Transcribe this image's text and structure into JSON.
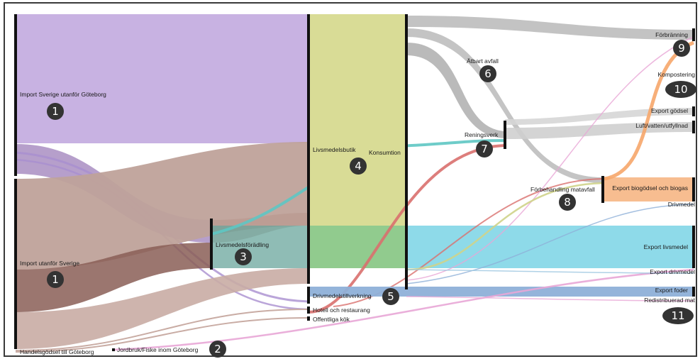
{
  "nodes": [
    {
      "id": "import_sverige",
      "label": "Import Sverige utanför Göteborg",
      "marker": "1"
    },
    {
      "id": "import_utanfor",
      "label": "Import utanför Sverige",
      "marker": "1"
    },
    {
      "id": "handelsgodsel",
      "label": "Handelsgödsel till Göteborg",
      "marker": ""
    },
    {
      "id": "jordbruk",
      "label": "Jordbruk/Fiske inom Göteborg",
      "marker": "2"
    },
    {
      "id": "livsmedelsforadling",
      "label": "Livsmedelsförädling",
      "marker": "3"
    },
    {
      "id": "livsmedelsbutik",
      "label": "Livsmedelsbutik",
      "marker": "4"
    },
    {
      "id": "drivmedelstillverkning",
      "label": "Drivmedelstillverkning",
      "marker": "5"
    },
    {
      "id": "hotell",
      "label": "Hotell och restaurang",
      "marker": ""
    },
    {
      "id": "offentliga",
      "label": "Offentliga kök",
      "marker": ""
    },
    {
      "id": "konsumtion",
      "label": "Konsumtion",
      "marker": ""
    },
    {
      "id": "atbart",
      "label": "Ätbart avfall",
      "marker": "6"
    },
    {
      "id": "reningsverk",
      "label": "Reningsverk",
      "marker": "7"
    },
    {
      "id": "forbehandling",
      "label": "Förbehandling matavfall",
      "marker": "8"
    },
    {
      "id": "forbranning",
      "label": "Förbränning",
      "marker": "9"
    },
    {
      "id": "kompostering",
      "label": "Kompostering",
      "marker": "10"
    },
    {
      "id": "export_godsel",
      "label": "Export gödsel",
      "marker": ""
    },
    {
      "id": "luft",
      "label": "Luft/vatten/utfyllnad",
      "marker": ""
    },
    {
      "id": "export_biogodsel",
      "label": "Export biogödsel och biogas",
      "marker": ""
    },
    {
      "id": "drivmedel",
      "label": "Drivmedel",
      "marker": ""
    },
    {
      "id": "export_livsmedel",
      "label": "Export livsmedel",
      "marker": ""
    },
    {
      "id": "export_drivmedel",
      "label": "Export drivmedel",
      "marker": ""
    },
    {
      "id": "export_foder",
      "label": "Export foder",
      "marker": ""
    },
    {
      "id": "redistribuerad",
      "label": "Redistribuerad mat",
      "marker": "11"
    }
  ],
  "colors": {
    "import_sverige": "#c5aee0",
    "import_utanfor": "#bfa29a",
    "livsmedelsbutik": "#d9dc96",
    "export_livsmedel": "#88d8e8",
    "export_biogodsel": "#f7b98a",
    "gray_flow": "#bdbdbd",
    "export_foder": "#8eb0d8",
    "pink_flow": "#e8a6d6",
    "red_flow": "#d9706e",
    "teal_flow": "#7fcfcf",
    "marker_fill": "#333333"
  }
}
